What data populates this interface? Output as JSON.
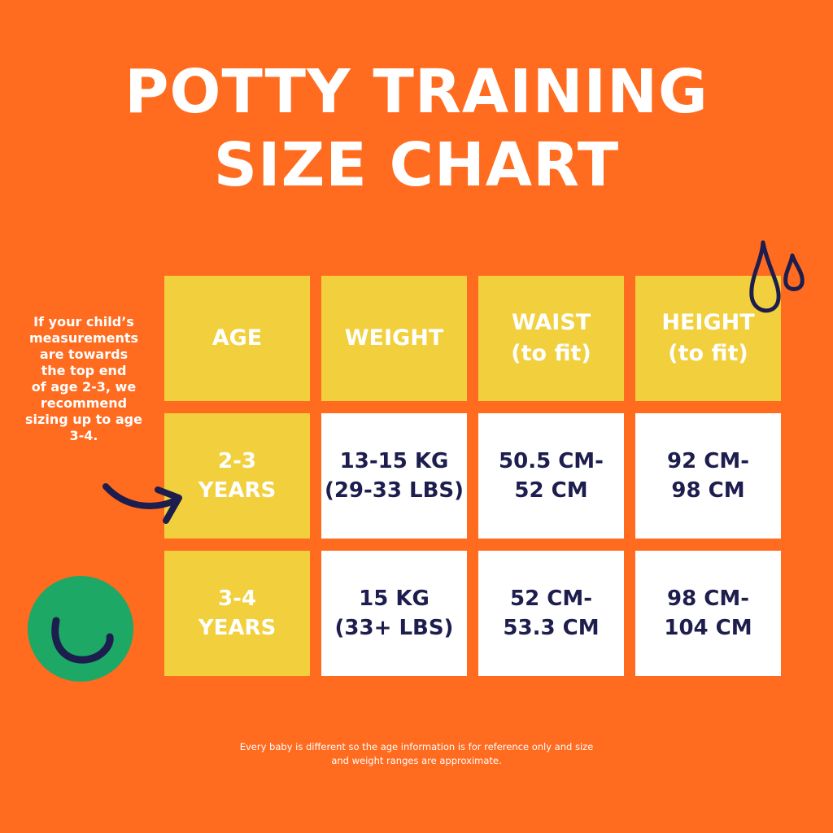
{
  "title": {
    "line1": "POTTY TRAINING",
    "line2": "SIZE CHART"
  },
  "side_note": {
    "lines": [
      "If your child’s",
      "measurements",
      "are towards",
      "the top end",
      "of age 2-3, we",
      "recommend",
      "sizing up to age",
      "3-4."
    ]
  },
  "table": {
    "headers": [
      {
        "line1": "AGE",
        "line2": ""
      },
      {
        "line1": "WEIGHT",
        "line2": ""
      },
      {
        "line1": "WAIST",
        "line2": "(to fit)"
      },
      {
        "line1": "HEIGHT",
        "line2": "(to fit)"
      }
    ],
    "rows": [
      {
        "age": {
          "line1": "2-3",
          "line2": "YEARS"
        },
        "weight": {
          "line1": "13-15 KG",
          "line2": "(29-33 LBS)"
        },
        "waist": {
          "line1": "50.5 CM-",
          "line2": "52 CM"
        },
        "height": {
          "line1": "92 CM-",
          "line2": "98 CM"
        }
      },
      {
        "age": {
          "line1": "3-4",
          "line2": "YEARS"
        },
        "weight": {
          "line1": "15 KG",
          "line2": "(33+ LBS)"
        },
        "waist": {
          "line1": "52 CM-",
          "line2": "53.3 CM"
        },
        "height": {
          "line1": "98 CM-",
          "line2": "104 CM"
        }
      }
    ]
  },
  "footer": {
    "line1": "Every baby is different so the age information is for reference only and size",
    "line2": "and weight ranges are approximate."
  },
  "colors": {
    "background": "#FF6B1F",
    "yellow": "#F2CF3C",
    "navy": "#1D1E4E",
    "green": "#1DA866",
    "white": "#FFFFFF"
  },
  "icons": [
    "water-drops-icon",
    "curved-arrow-icon",
    "smile-badge-icon"
  ]
}
